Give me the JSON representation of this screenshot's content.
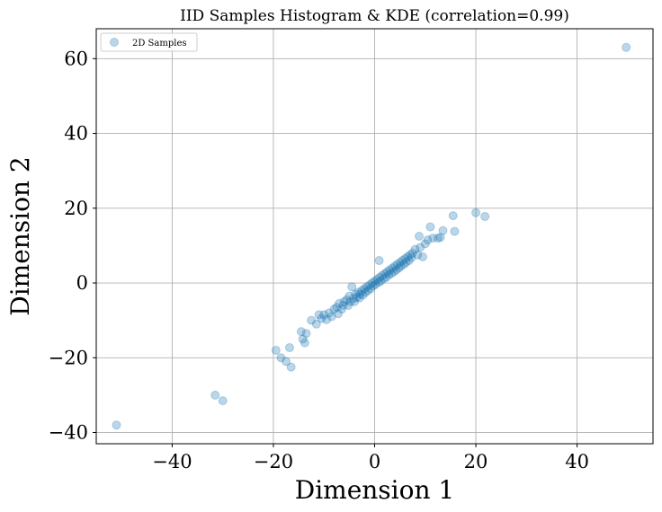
{
  "chart_data": {
    "type": "scatter",
    "title": "IID Samples Histogram & KDE (correlation=0.99)",
    "xlabel": "Dimension 1",
    "ylabel": "Dimension 2",
    "xlim": [
      -55,
      55
    ],
    "ylim": [
      -43,
      68
    ],
    "xticks": [
      -40,
      -20,
      0,
      20,
      40
    ],
    "yticks": [
      -40,
      -20,
      0,
      20,
      40,
      60
    ],
    "xtick_labels": [
      "−40",
      "−20",
      "0",
      "20",
      "40"
    ],
    "ytick_labels": [
      "−40",
      "−20",
      "0",
      "20",
      "40",
      "60"
    ],
    "grid": true,
    "legend": {
      "position": "top-left",
      "entries": [
        "2D Samples"
      ]
    },
    "marker_color": "#1f77b4",
    "marker_alpha": 0.3,
    "series": [
      {
        "name": "2D Samples",
        "points": [
          [
            49.7,
            63
          ],
          [
            -51,
            -38
          ],
          [
            -31.5,
            -30
          ],
          [
            -30,
            -31.5
          ],
          [
            -19.5,
            -18
          ],
          [
            -18.5,
            -20
          ],
          [
            -17.5,
            -21
          ],
          [
            -16.8,
            -17.3
          ],
          [
            -16.5,
            -22.5
          ],
          [
            -14.5,
            -13
          ],
          [
            -14.2,
            -15
          ],
          [
            -13.8,
            -16
          ],
          [
            -13.5,
            -13.5
          ],
          [
            -12.5,
            -10
          ],
          [
            -11.5,
            -11
          ],
          [
            -11,
            -8.5
          ],
          [
            -10.5,
            -9.5
          ],
          [
            -10,
            -8.5
          ],
          [
            -9.5,
            -9.8
          ],
          [
            -9,
            -8
          ],
          [
            -8.5,
            -9
          ],
          [
            -8,
            -7
          ],
          [
            -7.5,
            -6.5
          ],
          [
            -7.2,
            -8.2
          ],
          [
            -7,
            -5.5
          ],
          [
            -6.5,
            -7
          ],
          [
            -6.2,
            -6
          ],
          [
            -6,
            -5
          ],
          [
            -5.5,
            -4.5
          ],
          [
            -5.2,
            -6
          ],
          [
            -5,
            -3.5
          ],
          [
            -4.8,
            -5
          ],
          [
            -4.5,
            -1
          ],
          [
            -4.2,
            -4.2
          ],
          [
            -4,
            -5
          ],
          [
            -3.8,
            -3
          ],
          [
            -3.5,
            -3.8
          ],
          [
            -3.2,
            -2.5
          ],
          [
            -3,
            -4
          ],
          [
            -2.8,
            -3
          ],
          [
            -2.5,
            -2
          ],
          [
            -2.3,
            -3.2
          ],
          [
            -2,
            -1.5
          ],
          [
            -1.8,
            -2.5
          ],
          [
            -1.5,
            -1
          ],
          [
            -1.3,
            -2
          ],
          [
            -1,
            -0.5
          ],
          [
            -0.8,
            -1.5
          ],
          [
            -0.5,
            0
          ],
          [
            -0.3,
            -0.8
          ],
          [
            0,
            0.5
          ],
          [
            0.2,
            -0.4
          ],
          [
            0.5,
            1
          ],
          [
            0.8,
            0.2
          ],
          [
            0.9,
            6
          ],
          [
            1,
            1.5
          ],
          [
            1.2,
            0.5
          ],
          [
            1.5,
            2
          ],
          [
            1.8,
            1.2
          ],
          [
            2,
            2.5
          ],
          [
            2.3,
            1.5
          ],
          [
            2.5,
            3
          ],
          [
            2.8,
            2.2
          ],
          [
            3,
            3.5
          ],
          [
            3.3,
            2.5
          ],
          [
            3.5,
            4
          ],
          [
            3.8,
            3
          ],
          [
            4,
            4.5
          ],
          [
            4.3,
            3.5
          ],
          [
            4.5,
            5
          ],
          [
            4.8,
            4
          ],
          [
            5,
            5.5
          ],
          [
            5.2,
            4.5
          ],
          [
            5.5,
            6
          ],
          [
            5.8,
            5
          ],
          [
            6,
            6.5
          ],
          [
            6.2,
            5.5
          ],
          [
            6.5,
            7
          ],
          [
            6.8,
            6
          ],
          [
            7,
            7.5
          ],
          [
            7.3,
            6.8
          ],
          [
            7.5,
            8
          ],
          [
            8,
            9
          ],
          [
            8.5,
            7.5
          ],
          [
            8.8,
            12.5
          ],
          [
            9,
            9.5
          ],
          [
            9.5,
            7
          ],
          [
            10,
            10.5
          ],
          [
            10.5,
            11.5
          ],
          [
            11,
            15
          ],
          [
            11.5,
            12
          ],
          [
            12.5,
            12
          ],
          [
            13,
            12.2
          ],
          [
            13.5,
            14
          ],
          [
            15.5,
            18
          ],
          [
            15.8,
            13.8
          ],
          [
            20,
            18.8
          ],
          [
            21.8,
            17.8
          ]
        ]
      }
    ]
  }
}
